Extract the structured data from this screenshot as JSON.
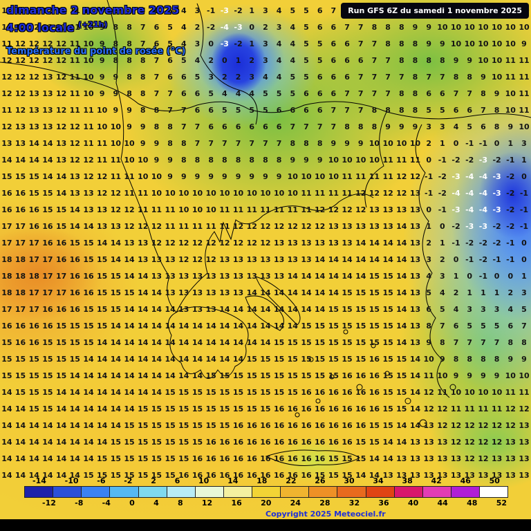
{
  "header": {
    "date": "dimanche 2 novembre 2025",
    "time": "4:00 locale",
    "offset": "(+21h)",
    "parameter": "Température du point de rosée (°C)",
    "run": "Run GFS 6Z du samedi 1 novembre 2025"
  },
  "footer": {
    "copyright": "Copyright 2025 Meteociel.fr"
  },
  "colors": {
    "map_yellow": "#f2cf38",
    "map_green": "#7cc043",
    "map_orange": "#f0a631",
    "map_blue": "#2e53e8",
    "map_cyan": "#7fd9ee",
    "title_blue": "#1e2fd8",
    "param_blue": "#2a70f8"
  },
  "scale": {
    "labels_top": [
      "-14",
      "-10",
      "-6",
      "-2",
      "2",
      "6",
      "10",
      "14",
      "18",
      "22",
      "26",
      "30",
      "34",
      "38",
      "42",
      "46",
      "50"
    ],
    "labels_bottom": [
      "-12",
      "-8",
      "-4",
      "0",
      "4",
      "8",
      "12",
      "16",
      "20",
      "24",
      "28",
      "32",
      "36",
      "40",
      "44",
      "48",
      "52"
    ],
    "colors": [
      "#1e22aa",
      "#2b50d8",
      "#3b82f2",
      "#55b8f2",
      "#7fd9ee",
      "#b8ecf6",
      "#e8f8d8",
      "#f4f0a0",
      "#f2d435",
      "#f0b42f",
      "#ee9026",
      "#e86a1e",
      "#e04414",
      "#d8186c",
      "#e23cb4",
      "#b01ed6",
      "#ffffff"
    ]
  },
  "grid": {
    "rows": [
      [
        10,
        12,
        12,
        12,
        11,
        11,
        11,
        8,
        8,
        7,
        7,
        6,
        5,
        4,
        3,
        -1,
        -3,
        -2,
        1,
        3,
        4,
        5,
        5,
        6,
        7,
        7,
        8,
        8,
        8,
        9,
        9,
        10,
        10,
        10,
        10,
        10,
        10,
        10,
        10
      ],
      [
        11,
        12,
        12,
        12,
        11,
        11,
        10,
        9,
        8,
        8,
        7,
        6,
        5,
        4,
        2,
        -2,
        -4,
        -3,
        0,
        2,
        3,
        4,
        5,
        6,
        6,
        7,
        7,
        8,
        8,
        8,
        9,
        9,
        10,
        10,
        10,
        10,
        10,
        10,
        10
      ],
      [
        11,
        12,
        12,
        12,
        12,
        11,
        10,
        9,
        8,
        8,
        7,
        6,
        5,
        4,
        3,
        0,
        -3,
        -2,
        1,
        3,
        4,
        4,
        5,
        5,
        6,
        6,
        7,
        7,
        8,
        8,
        8,
        9,
        9,
        10,
        10,
        10,
        10,
        10,
        9
      ],
      [
        12,
        12,
        12,
        12,
        12,
        11,
        10,
        9,
        8,
        8,
        8,
        7,
        6,
        5,
        4,
        2,
        0,
        1,
        2,
        3,
        4,
        4,
        5,
        5,
        6,
        6,
        6,
        7,
        7,
        8,
        8,
        8,
        8,
        9,
        9,
        10,
        10,
        11,
        11
      ],
      [
        12,
        12,
        12,
        13,
        12,
        11,
        10,
        9,
        9,
        8,
        8,
        7,
        6,
        6,
        5,
        3,
        2,
        2,
        3,
        4,
        4,
        5,
        5,
        6,
        6,
        6,
        7,
        7,
        7,
        7,
        8,
        7,
        7,
        8,
        8,
        9,
        10,
        11,
        11
      ],
      [
        12,
        12,
        13,
        13,
        12,
        11,
        10,
        9,
        9,
        8,
        8,
        7,
        7,
        6,
        6,
        5,
        4,
        4,
        4,
        5,
        5,
        5,
        6,
        6,
        6,
        7,
        7,
        7,
        7,
        8,
        8,
        6,
        6,
        7,
        7,
        8,
        9,
        10,
        11
      ],
      [
        11,
        12,
        13,
        13,
        12,
        11,
        11,
        10,
        9,
        9,
        8,
        8,
        7,
        7,
        6,
        6,
        5,
        5,
        5,
        5,
        6,
        6,
        6,
        6,
        7,
        7,
        7,
        8,
        8,
        8,
        8,
        5,
        5,
        6,
        6,
        7,
        8,
        10,
        11
      ],
      [
        12,
        13,
        13,
        13,
        12,
        12,
        11,
        10,
        10,
        9,
        9,
        8,
        8,
        7,
        7,
        6,
        6,
        6,
        6,
        6,
        6,
        7,
        7,
        7,
        7,
        8,
        8,
        8,
        9,
        9,
        9,
        3,
        3,
        4,
        5,
        6,
        8,
        9,
        10
      ],
      [
        13,
        13,
        14,
        14,
        13,
        12,
        11,
        11,
        10,
        10,
        9,
        9,
        8,
        8,
        7,
        7,
        7,
        7,
        7,
        7,
        7,
        8,
        8,
        8,
        9,
        9,
        9,
        10,
        10,
        10,
        10,
        2,
        1,
        0,
        -1,
        -1,
        0,
        1,
        3
      ],
      [
        14,
        14,
        14,
        14,
        13,
        12,
        12,
        11,
        11,
        10,
        10,
        9,
        9,
        8,
        8,
        8,
        8,
        8,
        8,
        8,
        8,
        9,
        9,
        9,
        10,
        10,
        10,
        10,
        11,
        11,
        11,
        0,
        -1,
        -2,
        -2,
        -3,
        -2,
        -1,
        1
      ],
      [
        15,
        15,
        15,
        14,
        14,
        13,
        12,
        12,
        11,
        11,
        10,
        10,
        9,
        9,
        9,
        9,
        9,
        9,
        9,
        9,
        9,
        10,
        10,
        10,
        10,
        11,
        11,
        11,
        11,
        12,
        12,
        -1,
        -2,
        -3,
        -4,
        -4,
        -3,
        -2,
        0
      ],
      [
        16,
        16,
        15,
        15,
        14,
        13,
        13,
        12,
        12,
        11,
        11,
        10,
        10,
        10,
        10,
        10,
        10,
        10,
        10,
        10,
        10,
        10,
        11,
        11,
        11,
        11,
        12,
        12,
        12,
        12,
        13,
        -1,
        -2,
        -4,
        -4,
        -4,
        -3,
        -2,
        -1
      ],
      [
        16,
        16,
        16,
        15,
        15,
        14,
        13,
        13,
        12,
        12,
        11,
        11,
        11,
        10,
        10,
        10,
        11,
        11,
        11,
        11,
        11,
        11,
        11,
        12,
        12,
        12,
        12,
        13,
        13,
        13,
        13,
        0,
        -1,
        -3,
        -4,
        -4,
        -3,
        -2,
        -1
      ],
      [
        17,
        17,
        16,
        16,
        15,
        14,
        14,
        13,
        13,
        12,
        12,
        12,
        11,
        11,
        11,
        11,
        11,
        12,
        12,
        12,
        12,
        12,
        12,
        12,
        13,
        13,
        13,
        13,
        13,
        14,
        13,
        1,
        0,
        -2,
        -3,
        -3,
        -2,
        -2,
        -1
      ],
      [
        17,
        17,
        17,
        16,
        16,
        15,
        15,
        14,
        14,
        13,
        13,
        12,
        12,
        12,
        12,
        12,
        12,
        12,
        12,
        12,
        13,
        13,
        13,
        13,
        13,
        13,
        14,
        14,
        14,
        14,
        13,
        2,
        1,
        -1,
        -2,
        -2,
        -2,
        -1,
        0
      ],
      [
        18,
        18,
        17,
        17,
        16,
        16,
        15,
        15,
        14,
        14,
        13,
        13,
        13,
        12,
        12,
        12,
        13,
        13,
        13,
        13,
        13,
        13,
        13,
        14,
        14,
        14,
        14,
        14,
        14,
        14,
        13,
        3,
        2,
        0,
        -1,
        -2,
        -1,
        -1,
        0
      ],
      [
        18,
        18,
        18,
        17,
        17,
        16,
        16,
        15,
        15,
        14,
        14,
        13,
        13,
        13,
        13,
        13,
        13,
        13,
        13,
        13,
        13,
        14,
        14,
        14,
        14,
        14,
        14,
        15,
        15,
        14,
        13,
        4,
        3,
        1,
        0,
        -1,
        0,
        0,
        1
      ],
      [
        18,
        18,
        17,
        17,
        17,
        16,
        16,
        15,
        15,
        15,
        14,
        14,
        13,
        13,
        13,
        13,
        13,
        13,
        14,
        14,
        14,
        14,
        14,
        14,
        14,
        15,
        15,
        15,
        15,
        14,
        13,
        5,
        4,
        2,
        1,
        1,
        1,
        2,
        3
      ],
      [
        17,
        17,
        17,
        16,
        16,
        16,
        15,
        15,
        15,
        14,
        14,
        14,
        14,
        13,
        13,
        13,
        14,
        14,
        14,
        14,
        14,
        14,
        14,
        14,
        15,
        15,
        15,
        15,
        15,
        14,
        13,
        6,
        5,
        4,
        3,
        3,
        3,
        4,
        5
      ],
      [
        16,
        16,
        16,
        16,
        15,
        15,
        15,
        15,
        14,
        14,
        14,
        14,
        14,
        14,
        14,
        14,
        14,
        14,
        14,
        14,
        14,
        14,
        15,
        15,
        15,
        15,
        15,
        15,
        15,
        14,
        13,
        8,
        7,
        6,
        5,
        5,
        5,
        6,
        7
      ],
      [
        15,
        16,
        16,
        15,
        15,
        15,
        15,
        14,
        14,
        14,
        14,
        14,
        14,
        14,
        14,
        14,
        14,
        14,
        14,
        14,
        15,
        15,
        15,
        15,
        15,
        15,
        15,
        15,
        15,
        14,
        13,
        9,
        8,
        7,
        7,
        7,
        7,
        8,
        8
      ],
      [
        15,
        15,
        15,
        15,
        15,
        15,
        14,
        14,
        14,
        14,
        14,
        14,
        14,
        14,
        14,
        14,
        14,
        14,
        15,
        15,
        15,
        15,
        15,
        15,
        15,
        15,
        15,
        16,
        15,
        15,
        14,
        10,
        9,
        8,
        8,
        8,
        8,
        9,
        9
      ],
      [
        15,
        15,
        15,
        15,
        15,
        14,
        14,
        14,
        14,
        14,
        14,
        14,
        14,
        14,
        14,
        15,
        15,
        15,
        15,
        15,
        15,
        15,
        15,
        15,
        15,
        16,
        16,
        16,
        15,
        15,
        14,
        11,
        10,
        9,
        9,
        9,
        9,
        10,
        10
      ],
      [
        14,
        15,
        15,
        15,
        14,
        14,
        14,
        14,
        14,
        14,
        14,
        14,
        15,
        15,
        15,
        15,
        15,
        15,
        15,
        15,
        15,
        15,
        16,
        16,
        16,
        16,
        16,
        16,
        15,
        15,
        14,
        12,
        11,
        10,
        10,
        10,
        10,
        11,
        11
      ],
      [
        14,
        14,
        15,
        15,
        14,
        14,
        14,
        14,
        14,
        14,
        15,
        15,
        15,
        15,
        15,
        15,
        15,
        15,
        15,
        15,
        16,
        16,
        16,
        16,
        16,
        16,
        16,
        16,
        15,
        15,
        14,
        12,
        12,
        11,
        11,
        11,
        11,
        12,
        12
      ],
      [
        14,
        14,
        14,
        14,
        14,
        14,
        14,
        14,
        14,
        15,
        15,
        15,
        15,
        15,
        15,
        15,
        15,
        16,
        16,
        16,
        16,
        16,
        16,
        16,
        16,
        16,
        16,
        15,
        15,
        14,
        14,
        13,
        12,
        12,
        12,
        12,
        12,
        12,
        13
      ],
      [
        14,
        14,
        14,
        14,
        14,
        14,
        14,
        14,
        15,
        15,
        15,
        15,
        15,
        15,
        15,
        16,
        16,
        16,
        16,
        16,
        16,
        16,
        16,
        16,
        16,
        16,
        15,
        15,
        14,
        14,
        13,
        13,
        13,
        12,
        12,
        12,
        12,
        13,
        13
      ],
      [
        14,
        14,
        14,
        14,
        14,
        14,
        14,
        15,
        15,
        15,
        15,
        15,
        15,
        15,
        16,
        16,
        16,
        16,
        16,
        16,
        16,
        16,
        16,
        16,
        15,
        15,
        15,
        14,
        14,
        13,
        13,
        13,
        13,
        13,
        12,
        12,
        13,
        13,
        13
      ],
      [
        14,
        14,
        14,
        14,
        14,
        14,
        15,
        15,
        15,
        15,
        15,
        15,
        15,
        16,
        16,
        16,
        16,
        16,
        16,
        16,
        16,
        16,
        16,
        15,
        15,
        15,
        14,
        14,
        13,
        13,
        13,
        13,
        13,
        13,
        13,
        13,
        13,
        13,
        13
      ]
    ]
  }
}
